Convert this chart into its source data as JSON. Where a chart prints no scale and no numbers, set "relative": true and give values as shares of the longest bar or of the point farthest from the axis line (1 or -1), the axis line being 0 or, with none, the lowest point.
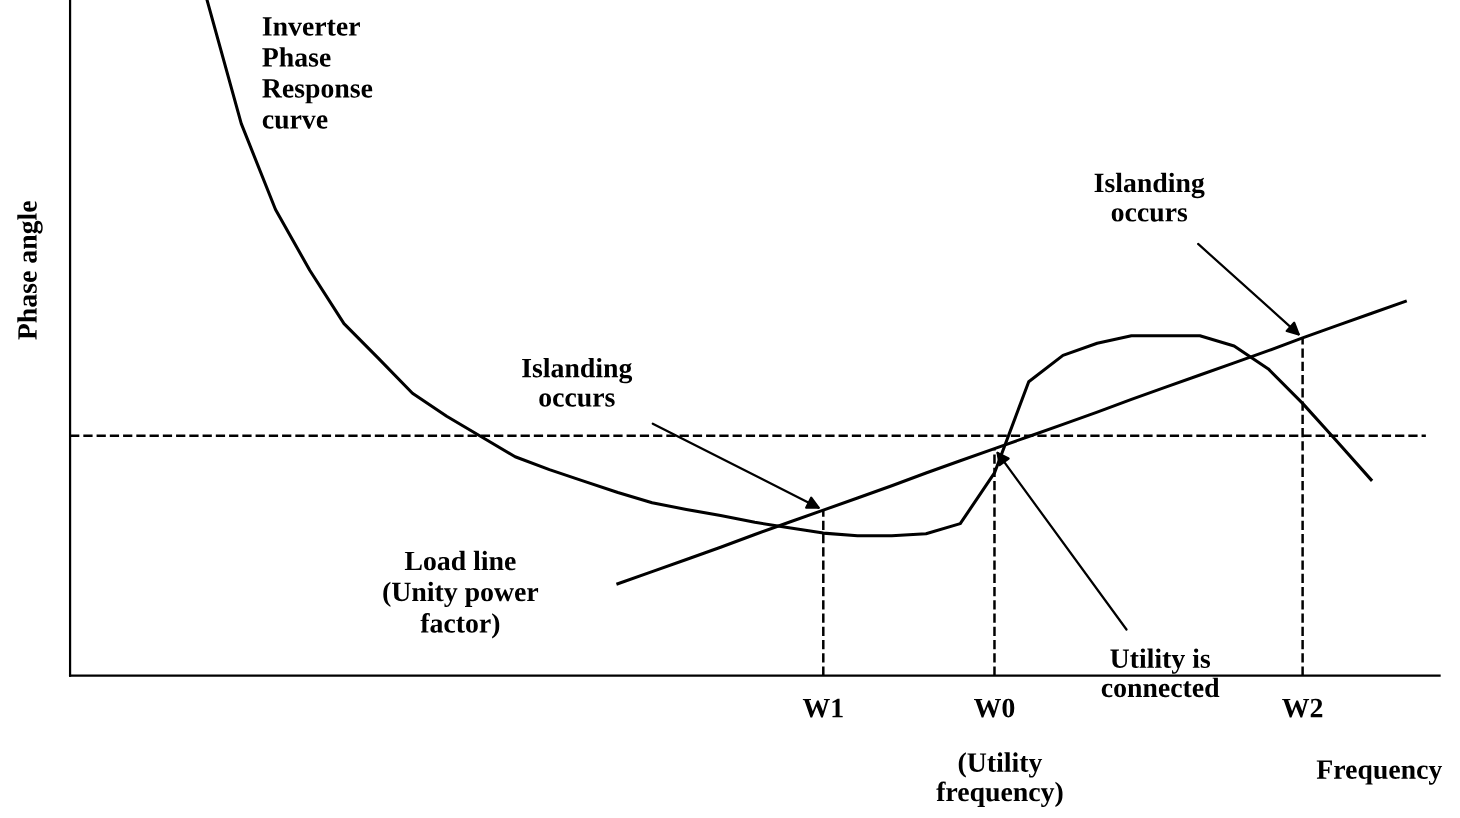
{
  "chart_data": {
    "type": "line",
    "relative": true,
    "xlabel": "Frequency",
    "ylabel": "Phase angle",
    "categories": [
      null,
      null,
      null,
      null,
      null,
      null,
      null,
      null,
      null,
      null,
      null,
      null,
      null,
      null,
      null,
      null,
      null,
      null,
      null,
      null,
      null,
      null,
      "W1",
      null,
      null,
      null,
      null,
      "W0",
      null,
      null,
      null,
      null,
      null,
      null,
      null,
      null,
      "W2",
      null,
      null,
      null,
      null
    ],
    "series": [
      {
        "name": "Inverter\nPhase\nResponse\ncurve",
        "color": "#000000",
        "values": [
          null,
          null,
          null,
          null,
          1,
          0.817,
          0.69,
          0.6,
          0.521,
          0.47,
          0.418,
          0.384,
          0.354,
          0.324,
          0.305,
          0.288,
          0.271,
          0.256,
          0.246,
          0.237,
          0.227,
          0.219,
          0.211,
          0.207,
          0.207,
          0.21,
          0.225,
          0.3,
          0.435,
          0.474,
          0.492,
          0.503,
          0.503,
          0.503,
          0.488,
          0.454,
          0.403,
          0.347,
          0.29,
          null,
          null
        ]
      },
      {
        "name": "Load line\n(Unity power\nfactor)",
        "color": "#000000",
        "values": [
          null,
          null,
          null,
          null,
          null,
          null,
          null,
          null,
          null,
          null,
          null,
          null,
          null,
          null,
          null,
          null,
          0.136,
          0.154,
          0.172,
          0.19,
          0.209,
          0.227,
          0.245,
          0.263,
          0.281,
          0.3,
          0.318,
          0.336,
          0.354,
          0.372,
          0.39,
          0.409,
          0.427,
          0.445,
          0.463,
          0.481,
          0.5,
          0.518,
          0.536,
          0.554,
          null
        ]
      }
    ],
    "ref_lines": [
      {
        "axis": "y",
        "value": 0.355,
        "line_style": "dashed",
        "color": "#000000"
      },
      {
        "axis": "x",
        "value": "W1",
        "line_style": "dashed",
        "color": "#000000"
      },
      {
        "axis": "x",
        "value": "W0",
        "line_style": "dashed",
        "color": "#000000"
      },
      {
        "axis": "x",
        "value": "W2",
        "line_style": "dashed",
        "color": "#000000"
      }
    ],
    "annotations": [
      "Islanding\noccurs",
      "Islanding\noccurs",
      "Utility is\nconnected",
      "(Utility\nfrequency)"
    ],
    "legend": false,
    "marker": "none",
    "line_style": "solid"
  }
}
